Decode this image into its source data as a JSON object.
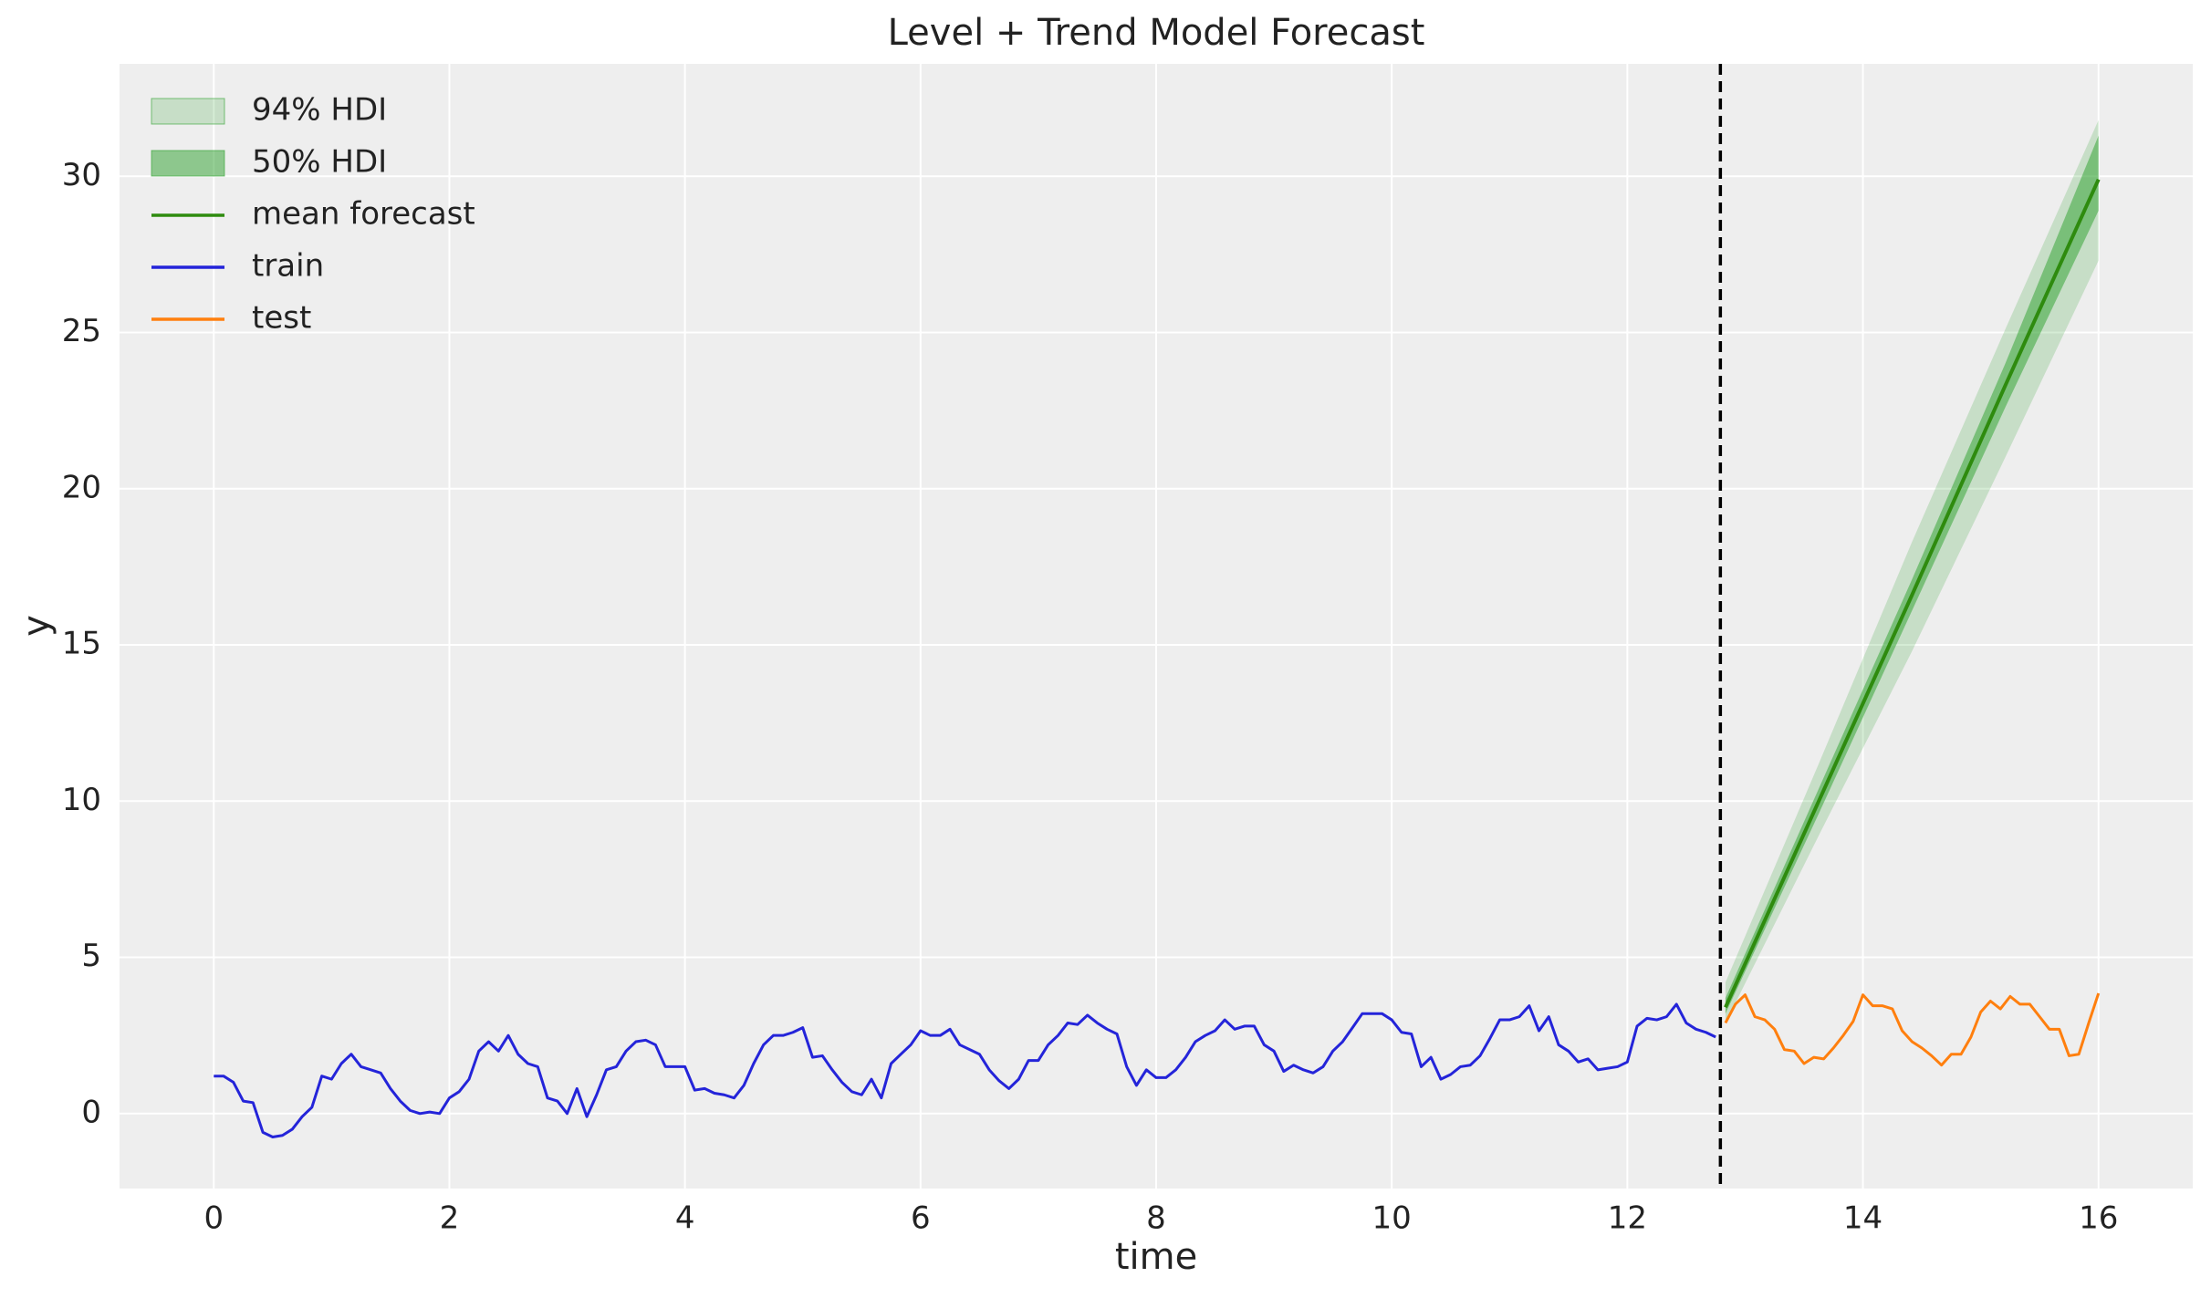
{
  "chart_data": {
    "type": "line",
    "title": "Level + Trend Model Forecast",
    "xlabel": "time",
    "ylabel": "y",
    "xlim": [
      -0.8,
      16.8
    ],
    "ylim": [
      -2.4,
      33.6
    ],
    "xticks": [
      0,
      2,
      4,
      6,
      8,
      10,
      12,
      14,
      16
    ],
    "yticks": [
      0,
      5,
      10,
      15,
      20,
      25,
      30
    ],
    "grid": true,
    "legend": "upper left",
    "vline_x": 12.79,
    "bands": [
      {
        "name": "94% HDI",
        "color": "#2ca02c",
        "opacity": 0.2,
        "x": [
          12.833,
          13.625,
          14.417,
          15.208,
          16
        ],
        "lower": [
          2.9,
          8.9,
          14.8,
          21.0,
          27.3
        ],
        "upper": [
          4.2,
          11.2,
          18.3,
          25.1,
          31.8
        ]
      },
      {
        "name": "50% HDI",
        "color": "#2ca02c",
        "opacity": 0.5,
        "x": [
          12.833,
          13.625,
          14.417,
          15.208,
          16
        ],
        "lower": [
          3.2,
          9.6,
          16.1,
          22.6,
          28.9
        ],
        "upper": [
          3.7,
          10.4,
          17.1,
          24.0,
          31.3
        ]
      }
    ],
    "series": [
      {
        "name": "mean forecast",
        "color": "#2e8b0e",
        "width": 4,
        "x": [
          12.833,
          13.625,
          14.417,
          15.208,
          16
        ],
        "values": [
          3.4,
          10.0,
          16.6,
          23.3,
          29.9
        ]
      },
      {
        "name": "train",
        "color": "#2424d9",
        "width": 3,
        "x": [
          0,
          0.083,
          0.167,
          0.25,
          0.333,
          0.417,
          0.5,
          0.583,
          0.667,
          0.75,
          0.833,
          0.917,
          1,
          1.083,
          1.167,
          1.25,
          1.333,
          1.417,
          1.5,
          1.583,
          1.667,
          1.75,
          1.833,
          1.917,
          2,
          2.083,
          2.167,
          2.25,
          2.333,
          2.417,
          2.5,
          2.583,
          2.667,
          2.75,
          2.833,
          2.917,
          3,
          3.083,
          3.167,
          3.25,
          3.333,
          3.417,
          3.5,
          3.583,
          3.667,
          3.75,
          3.833,
          3.917,
          4,
          4.083,
          4.167,
          4.25,
          4.333,
          4.417,
          4.5,
          4.583,
          4.667,
          4.75,
          4.833,
          4.917,
          5,
          5.083,
          5.167,
          5.25,
          5.333,
          5.417,
          5.5,
          5.583,
          5.667,
          5.75,
          5.833,
          5.917,
          6,
          6.083,
          6.167,
          6.25,
          6.333,
          6.417,
          6.5,
          6.583,
          6.667,
          6.75,
          6.833,
          6.917,
          7,
          7.083,
          7.167,
          7.25,
          7.333,
          7.417,
          7.5,
          7.583,
          7.667,
          7.75,
          7.833,
          7.917,
          8,
          8.083,
          8.167,
          8.25,
          8.333,
          8.417,
          8.5,
          8.583,
          8.667,
          8.75,
          8.833,
          8.917,
          9,
          9.083,
          9.167,
          9.25,
          9.333,
          9.417,
          9.5,
          9.583,
          9.667,
          9.75,
          9.833,
          9.917,
          10,
          10.083,
          10.167,
          10.25,
          10.333,
          10.417,
          10.5,
          10.583,
          10.667,
          10.75,
          10.833,
          10.917,
          11,
          11.083,
          11.167,
          11.25,
          11.333,
          11.417,
          11.5,
          11.583,
          11.667,
          11.75,
          11.833,
          11.917,
          12,
          12.083,
          12.167,
          12.25,
          12.333,
          12.417,
          12.5,
          12.583,
          12.667,
          12.75
        ],
        "values": [
          1.2,
          1.2,
          1.0,
          0.4,
          0.35,
          -0.6,
          -0.75,
          -0.7,
          -0.5,
          -0.1,
          0.2,
          1.2,
          1.1,
          1.6,
          1.9,
          1.5,
          1.4,
          1.3,
          0.8,
          0.4,
          0.1,
          0.0,
          0.05,
          0.0,
          0.5,
          0.7,
          1.1,
          2.0,
          2.3,
          2.0,
          2.5,
          1.9,
          1.6,
          1.5,
          0.5,
          0.4,
          0.0,
          0.8,
          -0.1,
          0.6,
          1.4,
          1.5,
          2.0,
          2.3,
          2.35,
          2.2,
          1.5,
          1.5,
          1.5,
          0.75,
          0.8,
          0.65,
          0.6,
          0.5,
          0.9,
          1.6,
          2.2,
          2.5,
          2.5,
          2.6,
          2.75,
          1.8,
          1.85,
          1.4,
          1.0,
          0.7,
          0.6,
          1.1,
          0.5,
          1.6,
          1.9,
          2.2,
          2.65,
          2.5,
          2.5,
          2.7,
          2.2,
          2.05,
          1.9,
          1.4,
          1.05,
          0.8,
          1.1,
          1.7,
          1.7,
          2.2,
          2.5,
          2.9,
          2.85,
          3.15,
          2.9,
          2.7,
          2.55,
          1.5,
          0.9,
          1.4,
          1.15,
          1.15,
          1.4,
          1.8,
          2.3,
          2.5,
          2.65,
          3.0,
          2.7,
          2.8,
          2.8,
          2.2,
          2.0,
          1.35,
          1.55,
          1.4,
          1.3,
          1.5,
          2.0,
          2.3,
          2.75,
          3.2,
          3.2,
          3.2,
          3.0,
          2.6,
          2.55,
          1.5,
          1.8,
          1.1,
          1.25,
          1.5,
          1.55,
          1.85,
          2.4,
          3.0,
          3.0,
          3.1,
          3.45,
          2.65,
          3.1,
          2.2,
          2.0,
          1.65,
          1.75,
          1.4,
          1.45,
          1.5,
          1.65,
          2.8,
          3.05,
          3.0,
          3.1,
          3.5,
          2.9,
          2.7,
          2.6,
          2.45
        ]
      },
      {
        "name": "test",
        "color": "#ff7f0e",
        "width": 3,
        "x": [
          12.833,
          12.917,
          13,
          13.083,
          13.167,
          13.25,
          13.333,
          13.417,
          13.5,
          13.583,
          13.667,
          13.75,
          13.833,
          13.917,
          14,
          14.083,
          14.167,
          14.25,
          14.333,
          14.417,
          14.5,
          14.583,
          14.667,
          14.75,
          14.833,
          14.917,
          15,
          15.083,
          15.167,
          15.25,
          15.333,
          15.417,
          15.5,
          15.583,
          15.667,
          15.75,
          15.833,
          15.917,
          16
        ],
        "values": [
          2.9,
          3.5,
          3.8,
          3.1,
          3.0,
          2.7,
          2.05,
          2.0,
          1.6,
          1.8,
          1.75,
          2.1,
          2.5,
          2.95,
          3.8,
          3.45,
          3.45,
          3.35,
          2.65,
          2.3,
          2.1,
          1.85,
          1.55,
          1.9,
          1.9,
          2.45,
          3.25,
          3.6,
          3.35,
          3.75,
          3.5,
          3.5,
          3.1,
          2.7,
          2.7,
          1.85,
          1.9,
          2.9,
          3.85
        ]
      }
    ]
  }
}
